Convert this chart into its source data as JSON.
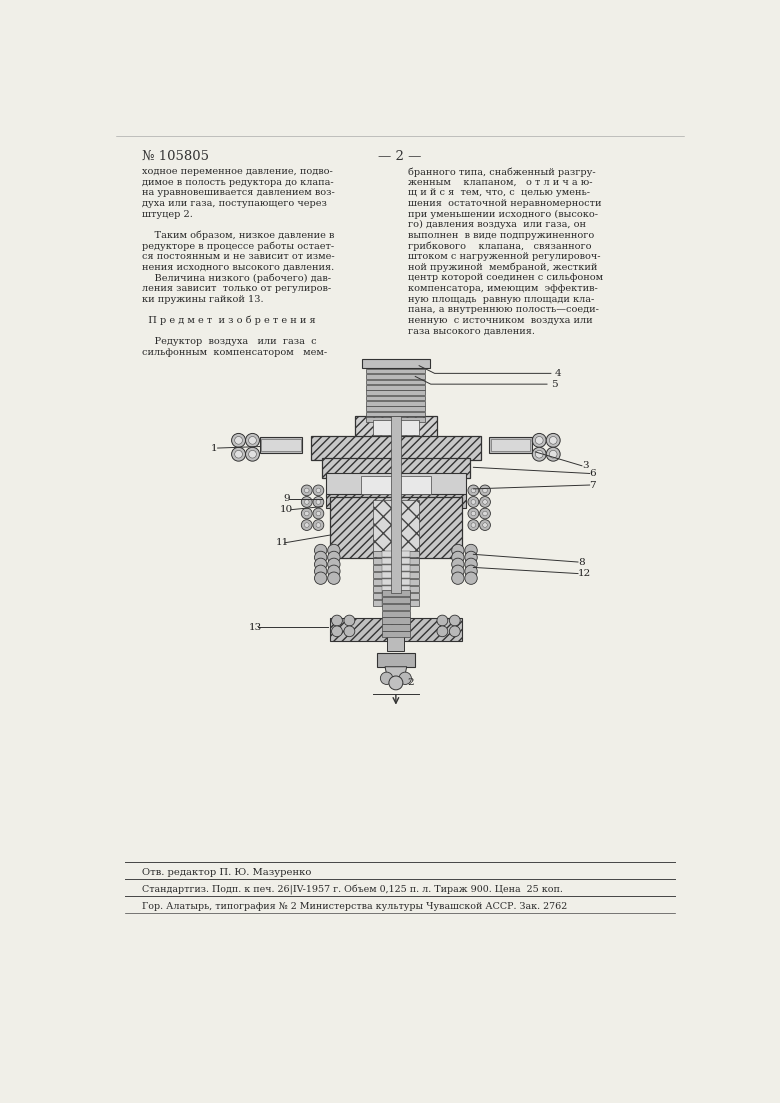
{
  "bg_color": "#f0efe8",
  "page_color": "#f7f6f0",
  "header_number": "№ 105805",
  "header_page": "— 2 —",
  "col1_text": [
    "ходное переменное давление, подво-",
    "димое в полость редуктора до клапа-",
    "на уравновешивается давлением воз-",
    "духа или газа, поступающего через",
    "штуцер 2.",
    "",
    "    Таким образом, низкое давление в",
    "редукторе в процессе работы остает-",
    "ся постоянным и не зависит от изме-",
    "нения исходного высокого давления.",
    "    Величина низкого (рабочего) дав-",
    "ления зависит  только от регулиров-",
    "ки пружины гайкой 13.",
    "",
    "  П р е д м е т  и з о б р е т е н и я",
    "",
    "    Редуктор  воздуха   или  газа  с",
    "сильфонным  компенсатором   мем-"
  ],
  "col2_text": [
    "бранного типа, снабженный разгру-",
    "женным    клапаном,   о т л и ч а ю-",
    "щ и й с я  тем, что, с  целью умень-",
    "шения  остаточной неравномерности",
    "при уменьшении исходного (высоко-",
    "го) давления воздуха  или газа, он",
    "выполнен  в виде подпружиненного",
    "грибкового    клапана,   связанного",
    "штоком с нагруженной регулировоч-",
    "ной пружиной  мембраной, жесткий",
    "центр которой соединен с сильфоном",
    "компенсатора, имеющим  эффектив-",
    "ную площадь  равную площади кла-",
    "пана, а внутреннюю полость—соеди-",
    "ненную  с источником  воздуха или",
    "газа высокого давления."
  ],
  "footer_editor": "Отв. редактор П. Ю. Мазуренко",
  "footer_line1": "Стандартгиз. Подп. к печ. 26|IV-1957 г. Объем 0,125 п. л. Тираж 900. Цена  25 коп.",
  "footer_line2": "Гор. Алатырь, типография № 2 Министерства культуры Чувашской АССР. Зак. 2762"
}
